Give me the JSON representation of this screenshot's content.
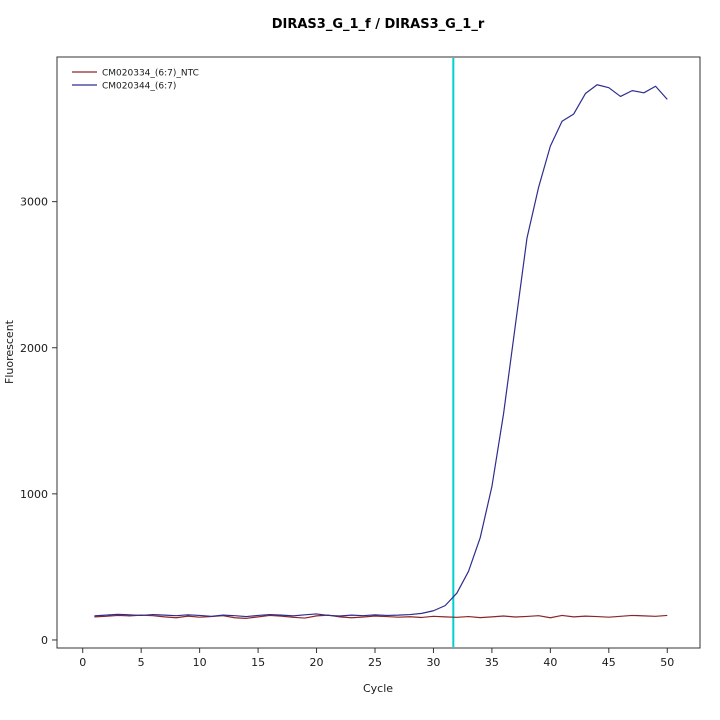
{
  "page": {
    "background": "#ffffff"
  },
  "chart_data": {
    "type": "line",
    "title": "DIRAS3_G_1_f / DIRAS3_G_1_r",
    "xlabel": "Cycle",
    "ylabel": "Fluorescent",
    "xlim": [
      0,
      50
    ],
    "ylim": [
      0,
      3800
    ],
    "x_ticks": [
      0,
      5,
      10,
      15,
      20,
      25,
      30,
      35,
      40,
      45,
      50
    ],
    "y_ticks": [
      0,
      1000,
      2000,
      3000
    ],
    "grid": false,
    "legend_position": "top-left",
    "threshold_line": {
      "x": 31.7,
      "orientation": "vertical",
      "color": "#00d0d0"
    },
    "x": [
      1,
      2,
      3,
      4,
      5,
      6,
      7,
      8,
      9,
      10,
      11,
      12,
      13,
      14,
      15,
      16,
      17,
      18,
      19,
      20,
      21,
      22,
      23,
      24,
      25,
      26,
      27,
      28,
      29,
      30,
      31,
      32,
      33,
      34,
      35,
      36,
      37,
      38,
      39,
      40,
      41,
      42,
      43,
      44,
      45,
      46,
      47,
      48,
      49,
      50
    ],
    "series": [
      {
        "id": "ntc",
        "name": "CM020334_(6:7)_NTC",
        "color": "#8b2626",
        "values": [
          158,
          162,
          168,
          165,
          170,
          166,
          158,
          152,
          163,
          156,
          160,
          166,
          152,
          148,
          158,
          168,
          163,
          155,
          150,
          165,
          170,
          158,
          152,
          157,
          164,
          160,
          156,
          159,
          154,
          162,
          158,
          155,
          160,
          153,
          158,
          164,
          157,
          161,
          166,
          152,
          168,
          158,
          163,
          160,
          156,
          162,
          168,
          165,
          162,
          168
        ]
      },
      {
        "id": "sample",
        "name": "CM020344_(6:7)",
        "color": "#2d2d8f",
        "values": [
          165,
          170,
          175,
          172,
          168,
          174,
          170,
          166,
          172,
          168,
          162,
          170,
          166,
          160,
          168,
          174,
          170,
          165,
          172,
          178,
          168,
          164,
          170,
          166,
          172,
          168,
          170,
          174,
          182,
          200,
          235,
          320,
          470,
          700,
          1050,
          1550,
          2150,
          2750,
          3100,
          3380,
          3550,
          3600,
          3740,
          3800,
          3780,
          3720,
          3760,
          3745,
          3790,
          3700
        ]
      }
    ]
  }
}
